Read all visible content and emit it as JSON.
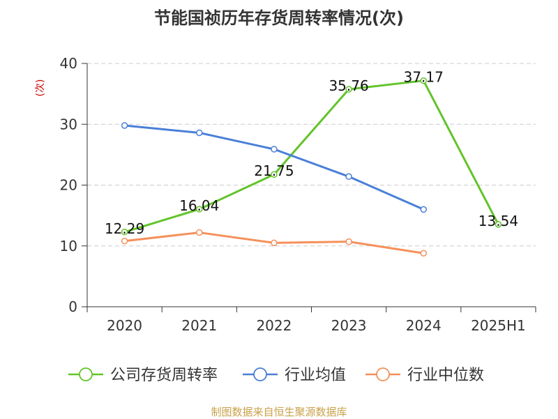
{
  "chart_data": {
    "type": "line",
    "title": "节能国祯历年存货周转率情况(次)",
    "ylabel": "(次)",
    "categories": [
      "2020",
      "2021",
      "2022",
      "2023",
      "2024",
      "2025H1"
    ],
    "yticks": [
      "0",
      "10",
      "20",
      "30",
      "40"
    ],
    "ylim": [
      0,
      40
    ],
    "grid": true,
    "legend_position": "bottom",
    "series": [
      {
        "name": "公司存货周转率",
        "color": "#62c42a",
        "values": [
          12.29,
          16.04,
          21.75,
          35.76,
          37.17,
          13.54
        ],
        "labels": [
          "12.29",
          "16.04",
          "21.75",
          "35.76",
          "37.17",
          "13.54"
        ]
      },
      {
        "name": "行业均值",
        "color": "#4a7fd8",
        "values": [
          29.8,
          28.6,
          25.9,
          21.4,
          16.0,
          null
        ]
      },
      {
        "name": "行业中位数",
        "color": "#f5905a",
        "values": [
          10.8,
          12.2,
          10.5,
          10.7,
          8.8,
          null
        ]
      }
    ]
  },
  "source": "制图数据来自恒生聚源数据库"
}
